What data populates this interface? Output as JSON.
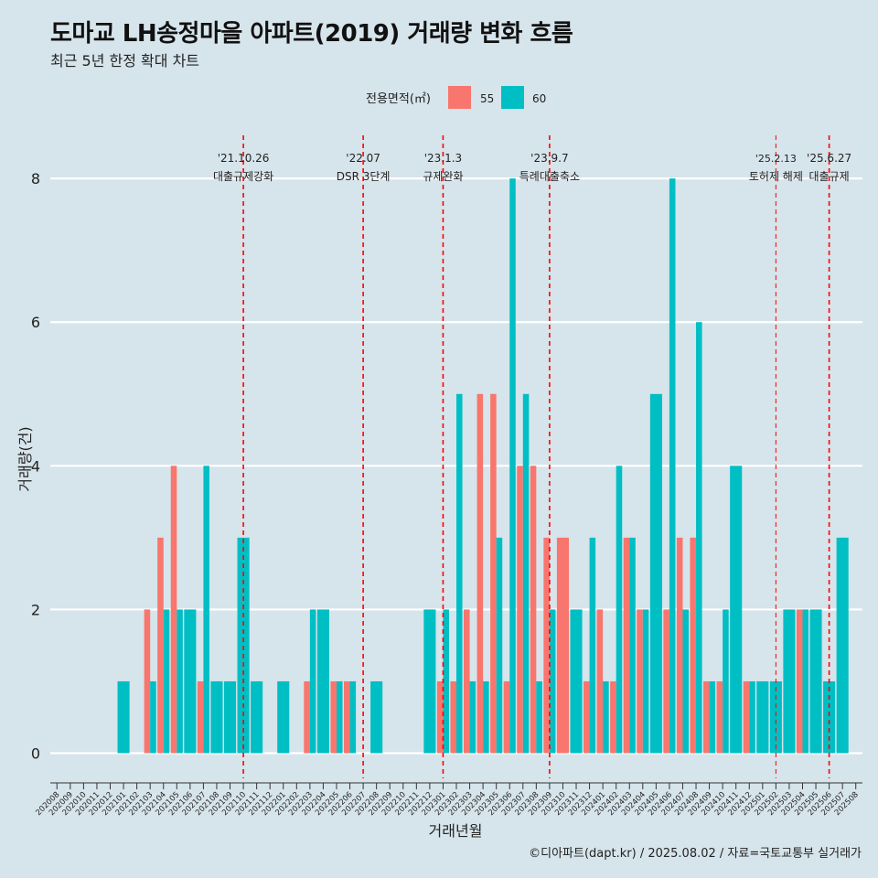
{
  "chart_data": {
    "type": "bar",
    "title": "도마교 LH송정마을 아파트(2019) 거래량 변화 흐름",
    "subtitle": "최근 5년 한정 확대 차트",
    "xlabel": "거래년월",
    "ylabel": "거래량(건)",
    "ylim": [
      -0.35,
      8.6
    ],
    "y_ticks": [
      0,
      2,
      4,
      6,
      8
    ],
    "grid": true,
    "legend": {
      "title": "전용면적(㎡)",
      "position": "top",
      "entries": [
        "55",
        "60"
      ]
    },
    "caption": "©디아파트(dapt.kr) / 2025.08.02 / 자료=국토교통부 실거래가",
    "categories": [
      "202008",
      "202009",
      "202010",
      "202011",
      "202012",
      "202101",
      "202102",
      "202103",
      "202104",
      "202105",
      "202106",
      "202107",
      "202108",
      "202109",
      "202110",
      "202111",
      "202112",
      "202201",
      "202202",
      "202203",
      "202204",
      "202205",
      "202206",
      "202207",
      "202208",
      "202209",
      "202210",
      "202211",
      "202212",
      "202301",
      "202302",
      "202303",
      "202304",
      "202305",
      "202306",
      "202307",
      "202308",
      "202309",
      "202310",
      "202311",
      "202312",
      "202401",
      "202402",
      "202403",
      "202404",
      "202405",
      "202406",
      "202407",
      "202408",
      "202409",
      "202410",
      "202411",
      "202412",
      "202501",
      "202502",
      "202503",
      "202504",
      "202505",
      "202506",
      "202507",
      "202508"
    ],
    "series": [
      {
        "name": "55",
        "color": "#f8766d",
        "values": [
          0,
          0,
          0,
          0,
          0,
          0,
          0,
          2,
          3,
          4,
          0,
          1,
          0,
          0,
          0,
          0,
          0,
          0,
          0,
          1,
          0,
          1,
          1,
          0,
          0,
          0,
          0,
          0,
          0,
          1,
          1,
          2,
          5,
          5,
          1,
          4,
          4,
          3,
          3,
          0,
          1,
          2,
          1,
          3,
          2,
          0,
          2,
          3,
          3,
          1,
          1,
          0,
          1,
          0,
          0,
          0,
          2,
          0,
          0,
          0,
          0
        ]
      },
      {
        "name": "60",
        "color": "#00bfc4",
        "values": [
          0,
          0,
          0,
          0,
          0,
          1,
          0,
          1,
          2,
          2,
          2,
          4,
          1,
          1,
          3,
          1,
          0,
          1,
          0,
          2,
          2,
          1,
          1,
          0,
          1,
          0,
          0,
          0,
          2,
          2,
          5,
          1,
          1,
          3,
          8,
          5,
          1,
          2,
          0,
          2,
          3,
          1,
          4,
          3,
          2,
          5,
          8,
          2,
          6,
          1,
          2,
          4,
          1,
          1,
          1,
          2,
          2,
          2,
          1,
          3,
          0
        ]
      }
    ],
    "events": [
      {
        "month": "202110",
        "date": "'21.10.26",
        "label": "대출규제강화"
      },
      {
        "month": "202207",
        "date": "'22.07",
        "label": "DSR 3단계"
      },
      {
        "month": "202301",
        "date": "'23.1.3",
        "label": "규제완화"
      },
      {
        "month": "202309",
        "date": "'23.9.7",
        "label": "특례대출축소"
      },
      {
        "month": "202502",
        "date": "'25.2.13",
        "label": "토허제 해제"
      },
      {
        "month": "202506",
        "date": "'25.6.27",
        "label": "대출규제"
      }
    ]
  }
}
